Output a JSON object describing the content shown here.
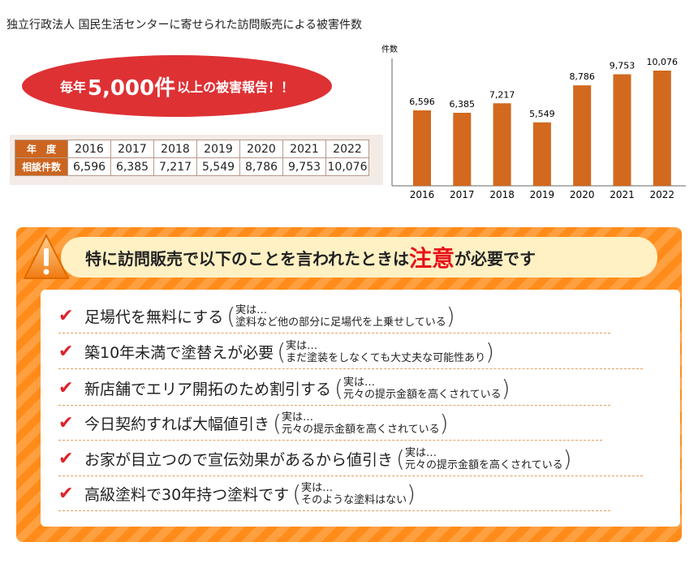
{
  "title": "独立行政法人 国民生活センターに寄せられた訪問販売による被害件数",
  "headline": {
    "pre": "毎年",
    "big": "5,000件",
    "post": "以上の被害報告！！"
  },
  "table": {
    "row1_label": "年　度",
    "row2_label": "相談件数",
    "years": [
      "2016",
      "2017",
      "2018",
      "2019",
      "2020",
      "2021",
      "2022"
    ],
    "counts": [
      "6,596",
      "6,385",
      "7,217",
      "5,549",
      "8,786",
      "9,753",
      "10,076"
    ]
  },
  "chart_data": {
    "type": "bar",
    "ylabel": "件数",
    "categories": [
      "2016",
      "2017",
      "2018",
      "2019",
      "2020",
      "2021",
      "2022"
    ],
    "values": [
      6596,
      6385,
      7217,
      5549,
      8786,
      9753,
      10076
    ],
    "data_labels": [
      "6,596",
      "6,385",
      "7,217",
      "5,549",
      "8,786",
      "9,753",
      "10,076"
    ],
    "bar_color": "#d2691e",
    "grid": false
  },
  "warning": {
    "pre": "特に訪問販売で以下のことを言われたときは",
    "emphasis": "注意",
    "post": "が必要です",
    "items": [
      {
        "text": "足場代を無料にする",
        "note1": "実は…",
        "note2": "塗料など他の部分に足場代を上乗せしている"
      },
      {
        "text": "築10年未満で塗替えが必要",
        "note1": "実は…",
        "note2": "まだ塗装をしなくても大丈夫な可能性あり"
      },
      {
        "text": "新店舗でエリア開拓のため割引する",
        "note1": "実は…",
        "note2": "元々の提示金額を高くされている"
      },
      {
        "text": "今日契約すれば大幅値引き",
        "note1": "実は…",
        "note2": "元々の提示金額を高くされている"
      },
      {
        "text": "お家が目立つので宣伝効果があるから値引き",
        "note1": "実は…",
        "note2": "元々の提示金額を高くされている"
      },
      {
        "text": "高級塗料で30年持つ塗料です",
        "note1": "実は…",
        "note2": "そのような塗料はない"
      }
    ]
  }
}
